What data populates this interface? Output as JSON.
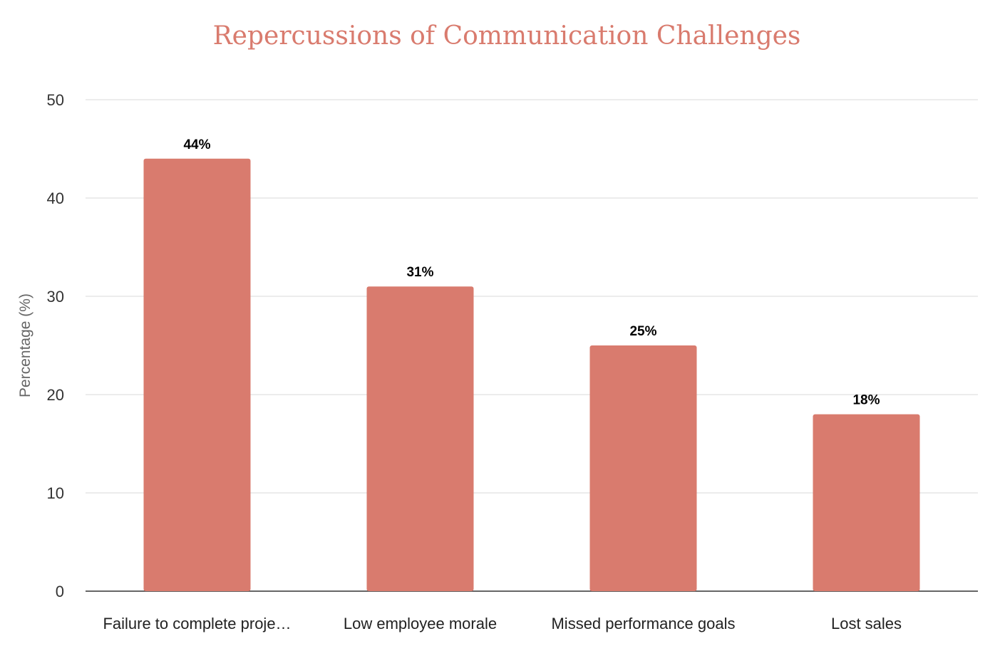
{
  "chart_data": {
    "type": "bar",
    "title": "Repercussions of Communication Challenges",
    "xlabel": "",
    "ylabel": "Percentage (%)",
    "categories": [
      "Failure to complete proje…",
      "Low employee morale",
      "Missed performance goals",
      "Lost sales"
    ],
    "values": [
      44,
      31,
      25,
      18
    ],
    "data_labels": [
      "44%",
      "31%",
      "25%",
      "18%"
    ],
    "ylim": [
      0,
      50
    ],
    "yticks": [
      0,
      10,
      20,
      30,
      40,
      50
    ],
    "grid": true,
    "legend": "none",
    "colors": {
      "bar": "#d97b6e",
      "title": "#d97b6e",
      "grid": "#e0e0e0",
      "axis": "#333333"
    }
  }
}
